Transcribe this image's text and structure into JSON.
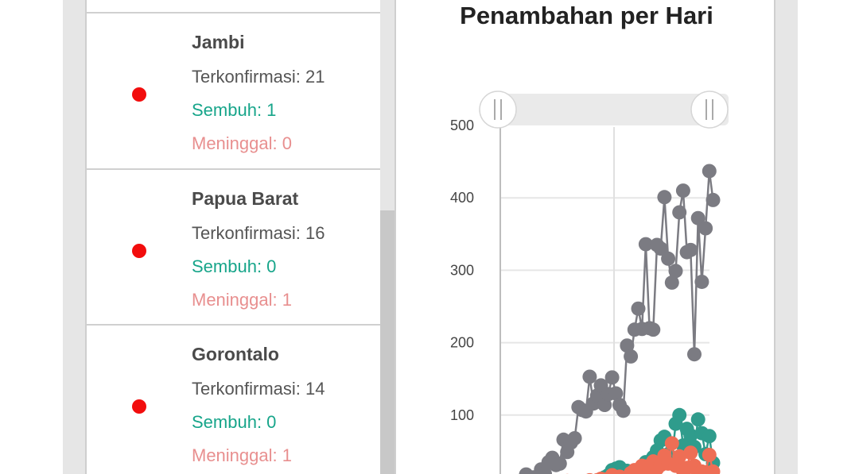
{
  "provinces": [
    {
      "name": "Jambi",
      "confirmed": "Terkonfirmasi: 21",
      "recovered": "Sembuh: 1",
      "deaths": "Meninggal: 0"
    },
    {
      "name": "Papua Barat",
      "confirmed": "Terkonfirmasi: 16",
      "recovered": "Sembuh: 0",
      "deaths": "Meninggal: 1"
    },
    {
      "name": "Gorontalo",
      "confirmed": "Terkonfirmasi: 14",
      "recovered": "Sembuh: 0",
      "deaths": "Meninggal: 1"
    }
  ],
  "colors": {
    "dot": "#f20d0d",
    "confirmed": "#7b7b82",
    "recovered": "#2f9c8c",
    "deaths": "#ee6e55"
  },
  "chart_data": {
    "type": "line",
    "title": "Penambahan per Hari",
    "xlabel": "",
    "ylabel": "",
    "ylim": [
      0,
      500
    ],
    "yticks": [
      "100",
      "200",
      "300",
      "400",
      "500"
    ],
    "grid": true,
    "series": [
      {
        "values": [
          2,
          7,
          1,
          0,
          3,
          18,
          12,
          14,
          12,
          25,
          19,
          35,
          41,
          31,
          33,
          66,
          49,
          62,
          68,
          111,
          107,
          105,
          153,
          116,
          127,
          141,
          114,
          129,
          152,
          130,
          114,
          106,
          196,
          181,
          218,
          247,
          219,
          336,
          220,
          218,
          335,
          330,
          401,
          316,
          283,
          299,
          380,
          410,
          325,
          328,
          184,
          372,
          284,
          358,
          437,
          397
        ]
      },
      {
        "values": [
          0,
          0,
          0,
          0,
          0,
          0,
          0,
          0,
          0,
          0,
          1,
          0,
          0,
          0,
          0,
          0,
          2,
          3,
          1,
          3,
          4,
          2,
          6,
          5,
          8,
          10,
          14,
          17,
          24,
          26,
          28,
          12,
          23,
          15,
          22,
          19,
          28,
          35,
          33,
          42,
          51,
          65,
          70,
          46,
          40,
          88,
          100,
          58,
          81,
          72,
          56,
          94,
          75,
          46,
          71,
          34
        ]
      },
      {
        "values": [
          0,
          0,
          0,
          0,
          0,
          0,
          0,
          0,
          3,
          0,
          2,
          3,
          0,
          1,
          6,
          5,
          9,
          5,
          4,
          7,
          6,
          7,
          10,
          3,
          10,
          12,
          11,
          10,
          17,
          14,
          15,
          11,
          13,
          20,
          24,
          21,
          30,
          29,
          25,
          36,
          26,
          31,
          44,
          33,
          61,
          30,
          43,
          23,
          27,
          48,
          30,
          20,
          22,
          21,
          45,
          22
        ]
      }
    ]
  }
}
